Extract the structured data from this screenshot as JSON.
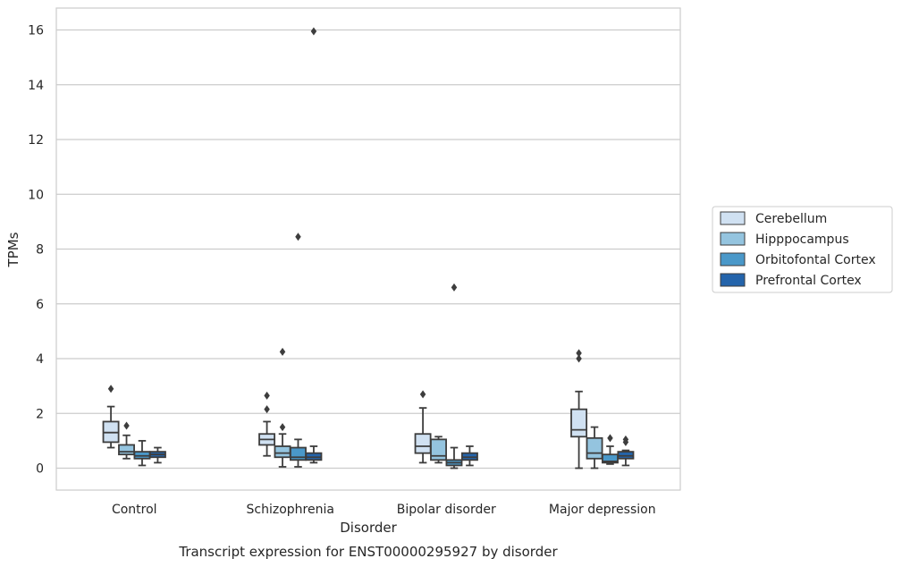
{
  "chart_data": {
    "type": "box",
    "title": "Transcript expression for ENST00000295927 by disorder",
    "xlabel": "Disorder",
    "ylabel": "TPMs",
    "ylim": [
      -0.8,
      16.8
    ],
    "yticks": [
      0,
      2,
      4,
      6,
      8,
      10,
      12,
      14,
      16
    ],
    "grid": true,
    "legend_position": "right",
    "categories": [
      "Control",
      "Schizophrenia",
      "Bipolar disorder",
      "Major depression"
    ],
    "series": [
      {
        "name": "Cerebellum",
        "color": "#d0e1f2",
        "boxes": [
          {
            "whisker_low": 0.75,
            "q1": 0.95,
            "median": 1.3,
            "q3": 1.7,
            "whisker_high": 2.25,
            "outliers": [
              2.9
            ]
          },
          {
            "whisker_low": 0.45,
            "q1": 0.85,
            "median": 1.05,
            "q3": 1.25,
            "whisker_high": 1.7,
            "outliers": [
              2.15,
              2.65
            ]
          },
          {
            "whisker_low": 0.2,
            "q1": 0.55,
            "median": 0.8,
            "q3": 1.25,
            "whisker_high": 2.2,
            "outliers": [
              2.7
            ]
          },
          {
            "whisker_low": 0.0,
            "q1": 1.15,
            "median": 1.4,
            "q3": 2.15,
            "whisker_high": 2.8,
            "outliers": [
              4.0,
              4.2
            ]
          }
        ]
      },
      {
        "name": "Hipppocampus",
        "color": "#94c4df",
        "boxes": [
          {
            "whisker_low": 0.35,
            "q1": 0.5,
            "median": 0.6,
            "q3": 0.85,
            "whisker_high": 1.2,
            "outliers": [
              1.55
            ]
          },
          {
            "whisker_low": 0.05,
            "q1": 0.4,
            "median": 0.55,
            "q3": 0.8,
            "whisker_high": 1.25,
            "outliers": [
              1.5,
              4.25
            ]
          },
          {
            "whisker_low": 0.2,
            "q1": 0.3,
            "median": 0.45,
            "q3": 1.05,
            "whisker_high": 1.15,
            "outliers": []
          },
          {
            "whisker_low": 0.0,
            "q1": 0.35,
            "median": 0.55,
            "q3": 1.1,
            "whisker_high": 1.5,
            "outliers": []
          }
        ]
      },
      {
        "name": "Orbitofontal Cortex",
        "color": "#4a98c9",
        "boxes": [
          {
            "whisker_low": 0.1,
            "q1": 0.35,
            "median": 0.45,
            "q3": 0.6,
            "whisker_high": 1.0,
            "outliers": []
          },
          {
            "whisker_low": 0.05,
            "q1": 0.3,
            "median": 0.4,
            "q3": 0.75,
            "whisker_high": 1.05,
            "outliers": [
              8.45
            ]
          },
          {
            "whisker_low": 0.0,
            "q1": 0.1,
            "median": 0.2,
            "q3": 0.3,
            "whisker_high": 0.75,
            "outliers": [
              6.6
            ]
          },
          {
            "whisker_low": 0.15,
            "q1": 0.2,
            "median": 0.25,
            "q3": 0.5,
            "whisker_high": 0.8,
            "outliers": [
              1.1
            ]
          }
        ]
      },
      {
        "name": "Prefrontal Cortex",
        "color": "#2464ab",
        "boxes": [
          {
            "whisker_low": 0.2,
            "q1": 0.4,
            "median": 0.5,
            "q3": 0.6,
            "whisker_high": 0.75,
            "outliers": []
          },
          {
            "whisker_low": 0.2,
            "q1": 0.3,
            "median": 0.4,
            "q3": 0.55,
            "whisker_high": 0.8,
            "outliers": [
              15.95
            ]
          },
          {
            "whisker_low": 0.1,
            "q1": 0.3,
            "median": 0.4,
            "q3": 0.55,
            "whisker_high": 0.8,
            "outliers": []
          },
          {
            "whisker_low": 0.1,
            "q1": 0.35,
            "median": 0.45,
            "q3": 0.6,
            "whisker_high": 0.65,
            "outliers": [
              0.95,
              1.05
            ]
          }
        ]
      }
    ]
  }
}
